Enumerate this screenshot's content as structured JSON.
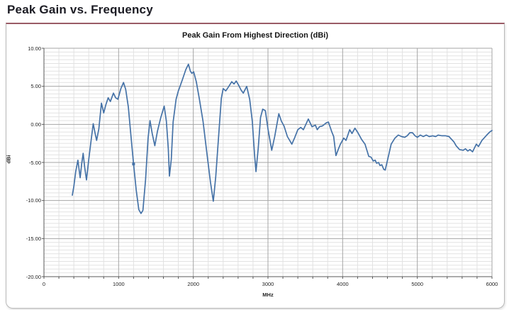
{
  "page": {
    "title": "Peak Gain vs. Frequency"
  },
  "chart": {
    "title": "Peak Gain From Highest Direction (dBi)",
    "y_axis": {
      "label": "dBi",
      "ticks": [
        "10.00",
        "5.00",
        "0.00",
        "-5.00",
        "-10.00",
        "-15.00",
        "-20.00"
      ],
      "tick_values": [
        10,
        5,
        0,
        -5,
        -10,
        -15,
        -20
      ]
    },
    "x_axis": {
      "label": "MHz",
      "ticks": [
        "0",
        "1000",
        "2000",
        "3000",
        "4000",
        "5000",
        "6000"
      ],
      "tick_values": [
        0,
        1000,
        2000,
        3000,
        4000,
        5000,
        6000
      ]
    },
    "colors": {
      "line": "#4572a7",
      "grid_minor": "#e2e2e2",
      "grid_major": "#a6a6a6",
      "axis": "#595959",
      "box_border": "#b9b9b9",
      "box_top_border": "#9a5b66"
    }
  },
  "chart_data": {
    "type": "line",
    "title": "Peak Gain From Highest Direction (dBi)",
    "xlabel": "MHz",
    "ylabel": "dBi",
    "xlim": [
      0,
      6000
    ],
    "ylim": [
      -20,
      10
    ],
    "x_major_step": 1000,
    "x_minor_step": 200,
    "y_major_step": 5,
    "y_minor_step": 0.5,
    "grid": true,
    "legend": "none",
    "marker_point": [
      1200,
      -5.2
    ],
    "series": [
      {
        "name": "Peak Gain",
        "points": [
          [
            380,
            -9.3
          ],
          [
            400,
            -8.2
          ],
          [
            425,
            -6.2
          ],
          [
            455,
            -4.7
          ],
          [
            470,
            -5.9
          ],
          [
            485,
            -7.0
          ],
          [
            505,
            -5.2
          ],
          [
            525,
            -3.8
          ],
          [
            545,
            -5.6
          ],
          [
            570,
            -7.3
          ],
          [
            600,
            -4.6
          ],
          [
            630,
            -2.2
          ],
          [
            660,
            0.1
          ],
          [
            685,
            -1.2
          ],
          [
            705,
            -2.1
          ],
          [
            735,
            -0.6
          ],
          [
            770,
            2.8
          ],
          [
            800,
            1.5
          ],
          [
            830,
            2.6
          ],
          [
            860,
            3.5
          ],
          [
            890,
            3.0
          ],
          [
            930,
            4.1
          ],
          [
            960,
            3.5
          ],
          [
            990,
            3.3
          ],
          [
            1030,
            4.7
          ],
          [
            1065,
            5.5
          ],
          [
            1095,
            4.6
          ],
          [
            1130,
            2.3
          ],
          [
            1165,
            -1.5
          ],
          [
            1200,
            -5.2
          ],
          [
            1235,
            -8.6
          ],
          [
            1270,
            -11.2
          ],
          [
            1300,
            -11.7
          ],
          [
            1325,
            -11.3
          ],
          [
            1360,
            -7.3
          ],
          [
            1395,
            -1.8
          ],
          [
            1420,
            0.5
          ],
          [
            1450,
            -1.2
          ],
          [
            1485,
            -2.8
          ],
          [
            1520,
            -0.9
          ],
          [
            1565,
            0.9
          ],
          [
            1610,
            2.4
          ],
          [
            1640,
            0.4
          ],
          [
            1665,
            -3.2
          ],
          [
            1680,
            -6.8
          ],
          [
            1705,
            -4.6
          ],
          [
            1730,
            0.3
          ],
          [
            1770,
            3.3
          ],
          [
            1800,
            4.4
          ],
          [
            1815,
            4.8
          ],
          [
            1855,
            5.9
          ],
          [
            1900,
            7.2
          ],
          [
            1935,
            7.9
          ],
          [
            1960,
            7.0
          ],
          [
            1980,
            6.7
          ],
          [
            2005,
            6.9
          ],
          [
            2040,
            5.6
          ],
          [
            2080,
            3.4
          ],
          [
            2130,
            0.4
          ],
          [
            2180,
            -3.6
          ],
          [
            2230,
            -7.6
          ],
          [
            2268,
            -10.1
          ],
          [
            2300,
            -6.9
          ],
          [
            2340,
            -1.4
          ],
          [
            2375,
            3.4
          ],
          [
            2400,
            4.7
          ],
          [
            2435,
            4.4
          ],
          [
            2470,
            4.9
          ],
          [
            2515,
            5.6
          ],
          [
            2545,
            5.3
          ],
          [
            2575,
            5.7
          ],
          [
            2610,
            5.1
          ],
          [
            2640,
            4.5
          ],
          [
            2670,
            4.1
          ],
          [
            2715,
            5.0
          ],
          [
            2755,
            3.3
          ],
          [
            2790,
            0.4
          ],
          [
            2820,
            -3.9
          ],
          [
            2840,
            -6.2
          ],
          [
            2870,
            -3.1
          ],
          [
            2900,
            0.9
          ],
          [
            2930,
            2.0
          ],
          [
            2965,
            1.8
          ],
          [
            3000,
            -0.6
          ],
          [
            3050,
            -3.4
          ],
          [
            3090,
            -1.6
          ],
          [
            3145,
            1.4
          ],
          [
            3180,
            0.4
          ],
          [
            3215,
            -0.2
          ],
          [
            3260,
            -1.6
          ],
          [
            3320,
            -2.6
          ],
          [
            3360,
            -1.7
          ],
          [
            3400,
            -0.7
          ],
          [
            3440,
            -0.4
          ],
          [
            3475,
            -0.7
          ],
          [
            3540,
            0.7
          ],
          [
            3590,
            -0.3
          ],
          [
            3635,
            -0.1
          ],
          [
            3660,
            -0.7
          ],
          [
            3690,
            -0.3
          ],
          [
            3730,
            -0.2
          ],
          [
            3780,
            0.2
          ],
          [
            3810,
            0.3
          ],
          [
            3855,
            -1.0
          ],
          [
            3880,
            -1.6
          ],
          [
            3910,
            -4.1
          ],
          [
            3945,
            -3.2
          ],
          [
            3970,
            -2.6
          ],
          [
            4015,
            -1.8
          ],
          [
            4045,
            -2.1
          ],
          [
            4095,
            -0.7
          ],
          [
            4125,
            -1.2
          ],
          [
            4165,
            -0.5
          ],
          [
            4205,
            -1.1
          ],
          [
            4255,
            -2.0
          ],
          [
            4300,
            -2.6
          ],
          [
            4350,
            -4.2
          ],
          [
            4380,
            -4.3
          ],
          [
            4410,
            -4.8
          ],
          [
            4435,
            -4.7
          ],
          [
            4455,
            -5.1
          ],
          [
            4480,
            -5.0
          ],
          [
            4500,
            -5.4
          ],
          [
            4525,
            -5.3
          ],
          [
            4550,
            -5.9
          ],
          [
            4570,
            -6.0
          ],
          [
            4620,
            -3.9
          ],
          [
            4650,
            -2.6
          ],
          [
            4700,
            -1.8
          ],
          [
            4745,
            -1.4
          ],
          [
            4790,
            -1.6
          ],
          [
            4830,
            -1.7
          ],
          [
            4865,
            -1.5
          ],
          [
            4900,
            -1.1
          ],
          [
            4935,
            -1.1
          ],
          [
            4970,
            -1.5
          ],
          [
            5000,
            -1.7
          ],
          [
            5040,
            -1.4
          ],
          [
            5080,
            -1.6
          ],
          [
            5120,
            -1.4
          ],
          [
            5160,
            -1.6
          ],
          [
            5205,
            -1.5
          ],
          [
            5245,
            -1.6
          ],
          [
            5280,
            -1.4
          ],
          [
            5330,
            -1.5
          ],
          [
            5380,
            -1.5
          ],
          [
            5425,
            -1.6
          ],
          [
            5490,
            -2.3
          ],
          [
            5520,
            -2.8
          ],
          [
            5565,
            -3.3
          ],
          [
            5615,
            -3.4
          ],
          [
            5645,
            -3.2
          ],
          [
            5675,
            -3.5
          ],
          [
            5705,
            -3.3
          ],
          [
            5740,
            -3.6
          ],
          [
            5790,
            -2.6
          ],
          [
            5820,
            -2.9
          ],
          [
            5865,
            -2.1
          ],
          [
            5930,
            -1.4
          ],
          [
            5970,
            -1.0
          ],
          [
            6000,
            -0.8
          ]
        ]
      }
    ]
  }
}
